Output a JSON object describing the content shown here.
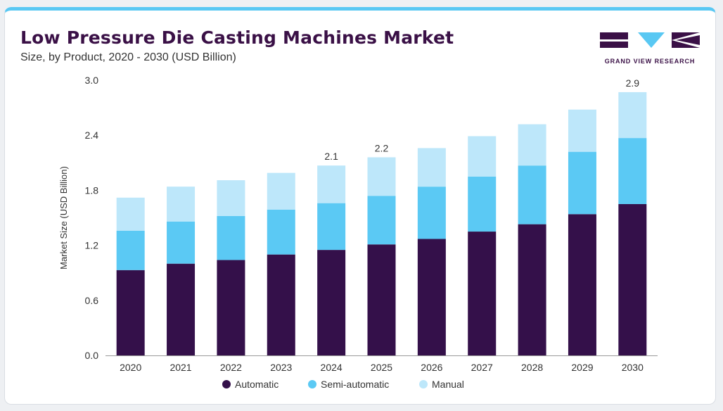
{
  "header": {
    "title": "Low Pressure Die Casting Machines Market",
    "subtitle": "Size, by Product, 2020 - 2030 (USD Billion)"
  },
  "logo": {
    "text": "GRAND VIEW RESEARCH",
    "colors": {
      "primary": "#3a1046",
      "accent": "#59c8f3"
    }
  },
  "chart_data": {
    "type": "bar",
    "stacked": true,
    "categories": [
      "2020",
      "2021",
      "2022",
      "2023",
      "2024",
      "2025",
      "2026",
      "2027",
      "2028",
      "2029",
      "2030"
    ],
    "series": [
      {
        "name": "Automatic",
        "color": "#34104a",
        "values": [
          0.93,
          1.0,
          1.04,
          1.1,
          1.15,
          1.21,
          1.27,
          1.35,
          1.43,
          1.54,
          1.65
        ]
      },
      {
        "name": "Semi-automatic",
        "color": "#5bc9f4",
        "values": [
          0.43,
          0.46,
          0.48,
          0.49,
          0.51,
          0.53,
          0.57,
          0.6,
          0.64,
          0.68,
          0.72
        ]
      },
      {
        "name": "Manual",
        "color": "#bde7fa",
        "values": [
          0.36,
          0.38,
          0.39,
          0.4,
          0.41,
          0.42,
          0.42,
          0.44,
          0.45,
          0.46,
          0.5
        ]
      }
    ],
    "data_labels": [
      {
        "category": "2024",
        "text": "2.1"
      },
      {
        "category": "2025",
        "text": "2.2"
      },
      {
        "category": "2030",
        "text": "2.9"
      }
    ],
    "ylabel": "Market Size (USD Billion)",
    "xlabel": "",
    "ylim": [
      0,
      3.0
    ],
    "yticks": [
      "0.0",
      "0.6",
      "1.2",
      "1.8",
      "2.4",
      "3.0"
    ],
    "grid": false,
    "legend": "bottom"
  }
}
